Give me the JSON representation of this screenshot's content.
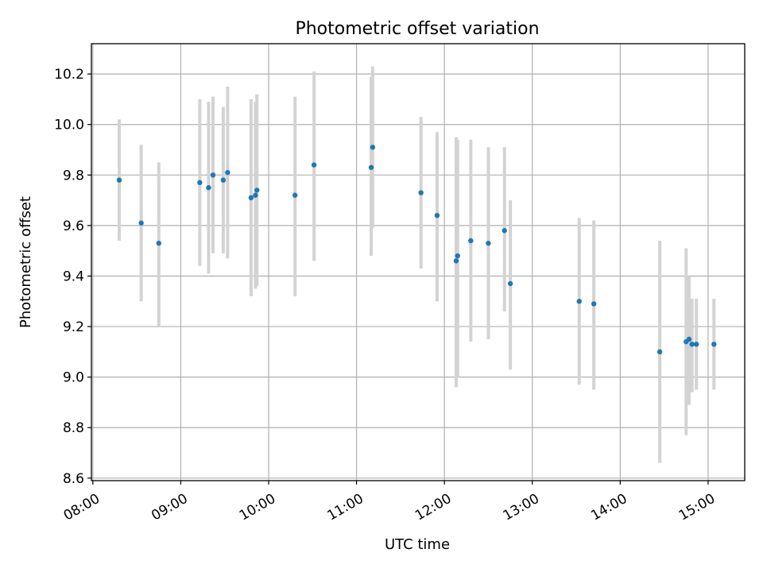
{
  "chart_data": {
    "type": "scatter",
    "title": "Photometric offset variation",
    "xlabel": "UTC time",
    "ylabel": "Photometric offset",
    "xlim": [
      "07:59",
      "15:25"
    ],
    "ylim": [
      8.59,
      10.32
    ],
    "xticks": [
      "08:00",
      "09:00",
      "10:00",
      "11:00",
      "12:00",
      "13:00",
      "14:00",
      "15:00"
    ],
    "yticks": [
      "8.6",
      "8.8",
      "9.0",
      "9.2",
      "9.4",
      "9.6",
      "9.8",
      "10.0",
      "10.2"
    ],
    "grid": true,
    "colors": {
      "points": "#1f77b4",
      "errorbars": "#d3d3d3",
      "grid": "#b0b0b0"
    },
    "points": [
      {
        "t": "08:18",
        "y": 9.78,
        "ylo": 9.54,
        "yhi": 10.02
      },
      {
        "t": "08:33",
        "y": 9.61,
        "ylo": 9.3,
        "yhi": 9.92
      },
      {
        "t": "08:45",
        "y": 9.53,
        "ylo": 9.2,
        "yhi": 9.85
      },
      {
        "t": "09:13",
        "y": 9.77,
        "ylo": 9.44,
        "yhi": 10.1
      },
      {
        "t": "09:19",
        "y": 9.75,
        "ylo": 9.41,
        "yhi": 10.09
      },
      {
        "t": "09:22",
        "y": 9.8,
        "ylo": 9.49,
        "yhi": 10.11
      },
      {
        "t": "09:29",
        "y": 9.78,
        "ylo": 9.49,
        "yhi": 10.07
      },
      {
        "t": "09:32",
        "y": 9.81,
        "ylo": 9.47,
        "yhi": 10.15
      },
      {
        "t": "09:48",
        "y": 9.71,
        "ylo": 9.32,
        "yhi": 10.1
      },
      {
        "t": "09:51",
        "y": 9.72,
        "ylo": 9.35,
        "yhi": 10.09
      },
      {
        "t": "09:52",
        "y": 9.74,
        "ylo": 9.36,
        "yhi": 10.12
      },
      {
        "t": "10:18",
        "y": 9.72,
        "ylo": 9.32,
        "yhi": 10.11
      },
      {
        "t": "10:31",
        "y": 9.84,
        "ylo": 9.46,
        "yhi": 10.21
      },
      {
        "t": "11:10",
        "y": 9.83,
        "ylo": 9.48,
        "yhi": 10.19
      },
      {
        "t": "11:11",
        "y": 9.91,
        "ylo": 9.59,
        "yhi": 10.23
      },
      {
        "t": "11:44",
        "y": 9.73,
        "ylo": 9.43,
        "yhi": 10.03
      },
      {
        "t": "11:55",
        "y": 9.64,
        "ylo": 9.3,
        "yhi": 9.97
      },
      {
        "t": "12:08",
        "y": 9.46,
        "ylo": 8.96,
        "yhi": 9.95
      },
      {
        "t": "12:09",
        "y": 9.48,
        "ylo": 9.0,
        "yhi": 9.94
      },
      {
        "t": "12:18",
        "y": 9.54,
        "ylo": 9.14,
        "yhi": 9.94
      },
      {
        "t": "12:30",
        "y": 9.53,
        "ylo": 9.15,
        "yhi": 9.91
      },
      {
        "t": "12:41",
        "y": 9.58,
        "ylo": 9.26,
        "yhi": 9.91
      },
      {
        "t": "12:45",
        "y": 9.37,
        "ylo": 9.03,
        "yhi": 9.7
      },
      {
        "t": "13:32",
        "y": 9.3,
        "ylo": 8.97,
        "yhi": 9.63
      },
      {
        "t": "13:42",
        "y": 9.29,
        "ylo": 8.95,
        "yhi": 9.62
      },
      {
        "t": "14:27",
        "y": 9.1,
        "ylo": 8.66,
        "yhi": 9.54
      },
      {
        "t": "14:45",
        "y": 9.14,
        "ylo": 8.77,
        "yhi": 9.51
      },
      {
        "t": "14:47",
        "y": 9.15,
        "ylo": 8.89,
        "yhi": 9.4
      },
      {
        "t": "14:49",
        "y": 9.13,
        "ylo": 8.94,
        "yhi": 9.31
      },
      {
        "t": "14:52",
        "y": 9.13,
        "ylo": 8.95,
        "yhi": 9.31
      },
      {
        "t": "15:04",
        "y": 9.13,
        "ylo": 8.95,
        "yhi": 9.31
      }
    ]
  }
}
